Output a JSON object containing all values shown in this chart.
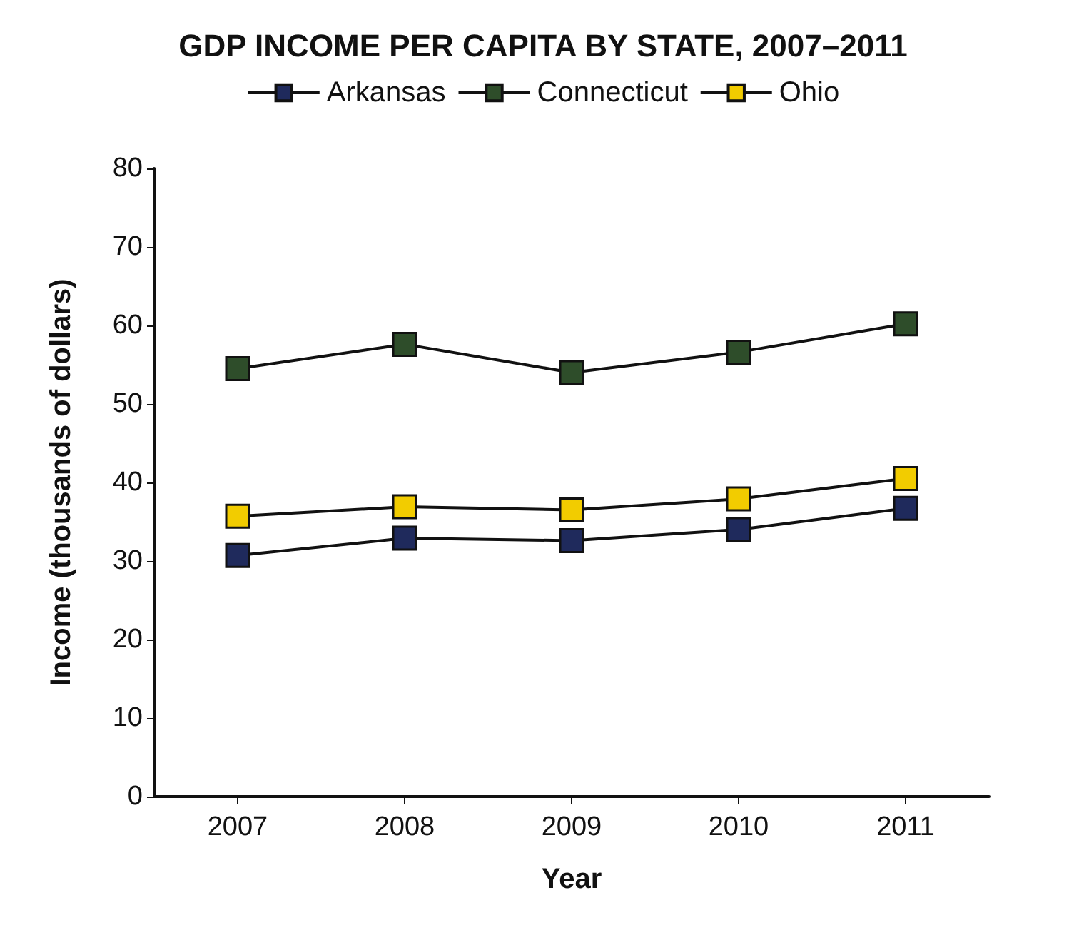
{
  "chart_data": {
    "type": "line",
    "title": "GDP INCOME PER CAPITA BY STATE, 2007–2011",
    "xlabel": "Year",
    "ylabel": "Income (thousands of dollars)",
    "categories": [
      "2007",
      "2008",
      "2009",
      "2010",
      "2011"
    ],
    "series": [
      {
        "name": "Arkansas",
        "color": "#1f2a5c",
        "values": [
          30.7,
          32.9,
          32.6,
          34,
          36.7
        ]
      },
      {
        "name": "Connecticut",
        "color": "#2e4d2a",
        "values": [
          54.5,
          57.6,
          54,
          56.6,
          60.2
        ]
      },
      {
        "name": "Ohio",
        "color": "#f2cc00",
        "values": [
          35.7,
          36.9,
          36.5,
          37.9,
          40.5
        ]
      }
    ],
    "ylim": [
      0,
      80
    ],
    "yticks": [
      0,
      10,
      20,
      30,
      40,
      50,
      60,
      70,
      80
    ],
    "grid": false,
    "legend": "top",
    "marker": "square",
    "line_style": "solid"
  }
}
